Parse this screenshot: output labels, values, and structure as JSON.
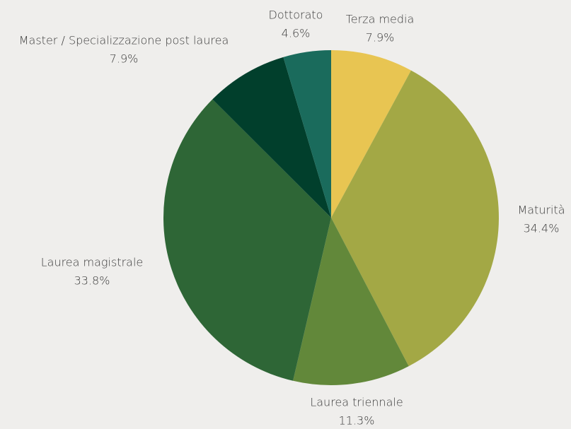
{
  "chart_data": {
    "type": "pie",
    "categories": [
      "Terza media",
      "Maturità",
      "Laurea triennale",
      "Laurea magistrale",
      "Master / Specializzazione post laurea",
      "Dottorato"
    ],
    "values": [
      7.9,
      34.4,
      11.3,
      33.8,
      7.9,
      4.6
    ],
    "value_labels": [
      "7.9%",
      "34.4%",
      "11.3%",
      "33.8%",
      "7.9%",
      "4.6%"
    ],
    "colors": [
      "#e8c552",
      "#a3a845",
      "#62883a",
      "#2e6636",
      "#013f2c",
      "#1a6b5c"
    ]
  }
}
